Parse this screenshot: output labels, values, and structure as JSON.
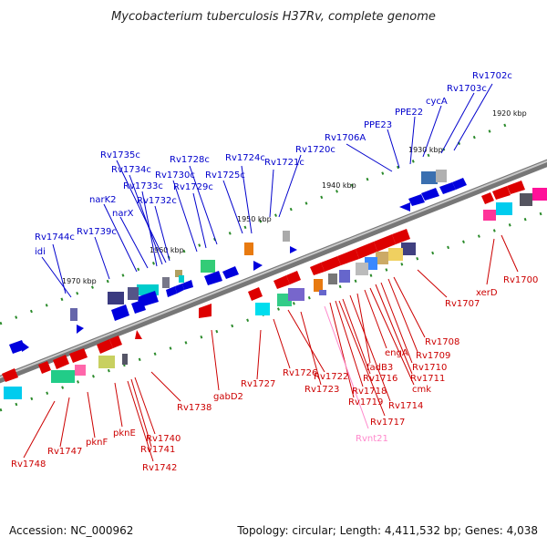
{
  "title": "Mycobacterium tuberculosis H37Rv, complete genome",
  "footer": {
    "accession": "Accession: NC_000962",
    "summary": "Topology: circular; Length: 4,411,532 bp; Genes: 4,038"
  },
  "colors": {
    "forward_label": "#0000cc",
    "reverse_label": "#cc0000",
    "rna_label": "#ff88cc",
    "backbone": "#8a8a8a",
    "scale_tick": "#2a8a2a"
  },
  "scale_labels": [
    "1920 kbp",
    "1930 kbp",
    "1940 kbp",
    "1950 kbp",
    "1960 kbp",
    "1970 kbp"
  ],
  "forward_labels": [
    "Rv1702c",
    "Rv1703c",
    "cycA",
    "PPE22",
    "PPE23",
    "Rv1706A",
    "Rv1720c",
    "Rv1721c",
    "Rv1724c",
    "Rv1725c",
    "Rv1728c",
    "Rv1729c",
    "Rv1730c",
    "Rv1735c",
    "Rv1734c",
    "Rv1733c",
    "Rv1732c",
    "narK2",
    "narX",
    "Rv1739c",
    "Rv1744c",
    "idi"
  ],
  "reverse_labels": [
    "Rv1700",
    "xerD",
    "Rv1707",
    "Rv1708",
    "Rv1709",
    "Rv1710",
    "Rv1711",
    "cmk",
    "engA",
    "fadB3",
    "Rv1714",
    "Rv1716",
    "Rv1718",
    "Rv1719",
    "Rv1717",
    "Rv1722",
    "Rv1723",
    "Rv1726",
    "Rv1727",
    "gabD2",
    "Rv1738",
    "Rv1740",
    "Rv1741",
    "Rv1742",
    "pknE",
    "pknF",
    "Rv1747",
    "Rv1748"
  ],
  "rna_labels": [
    "Rvnt21"
  ]
}
